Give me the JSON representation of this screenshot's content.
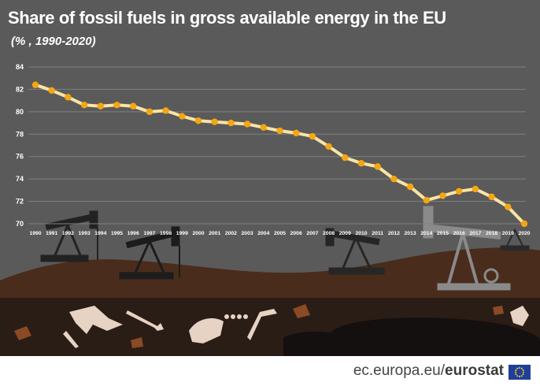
{
  "title": "Share of fossil fuels in gross available energy in the EU",
  "subtitle": "(% , 1990-2020)",
  "footer": {
    "site": "ec.europa.eu/",
    "brand": "eurostat"
  },
  "colors": {
    "background": "#5a5a5a",
    "gridline": "#808080",
    "line": "#fbe3a4",
    "marker": "#f3a712",
    "ground": "#4a2c1c",
    "underground": "#2a1d16",
    "footer_text": "#444444"
  },
  "chart_data": {
    "type": "line",
    "title": "Share of fossil fuels in gross available energy in the EU",
    "subtitle": "(% , 1990-2020)",
    "xlabel": "",
    "ylabel": "",
    "ylim": [
      70,
      84
    ],
    "yticks": [
      70,
      72,
      74,
      76,
      78,
      80,
      82,
      84
    ],
    "grid": true,
    "legend": "none",
    "categories": [
      "1990",
      "1991",
      "1992",
      "1993",
      "1994",
      "1995",
      "1996",
      "1997",
      "1998",
      "1999",
      "2000",
      "2001",
      "2002",
      "2003",
      "2004",
      "2005",
      "2006",
      "2007",
      "2008",
      "2009",
      "2010",
      "2011",
      "2012",
      "2013",
      "2014",
      "2015",
      "2016",
      "2017",
      "2018",
      "2019",
      "2020"
    ],
    "series": [
      {
        "values": [
          82.4,
          81.9,
          81.3,
          80.6,
          80.5,
          80.6,
          80.5,
          80.0,
          80.1,
          79.6,
          79.2,
          79.1,
          79.0,
          78.9,
          78.6,
          78.3,
          78.1,
          77.8,
          76.9,
          75.9,
          75.4,
          75.1,
          74.0,
          73.3,
          72.1,
          72.5,
          72.9,
          73.1,
          72.4,
          71.5,
          70.0
        ]
      }
    ]
  }
}
